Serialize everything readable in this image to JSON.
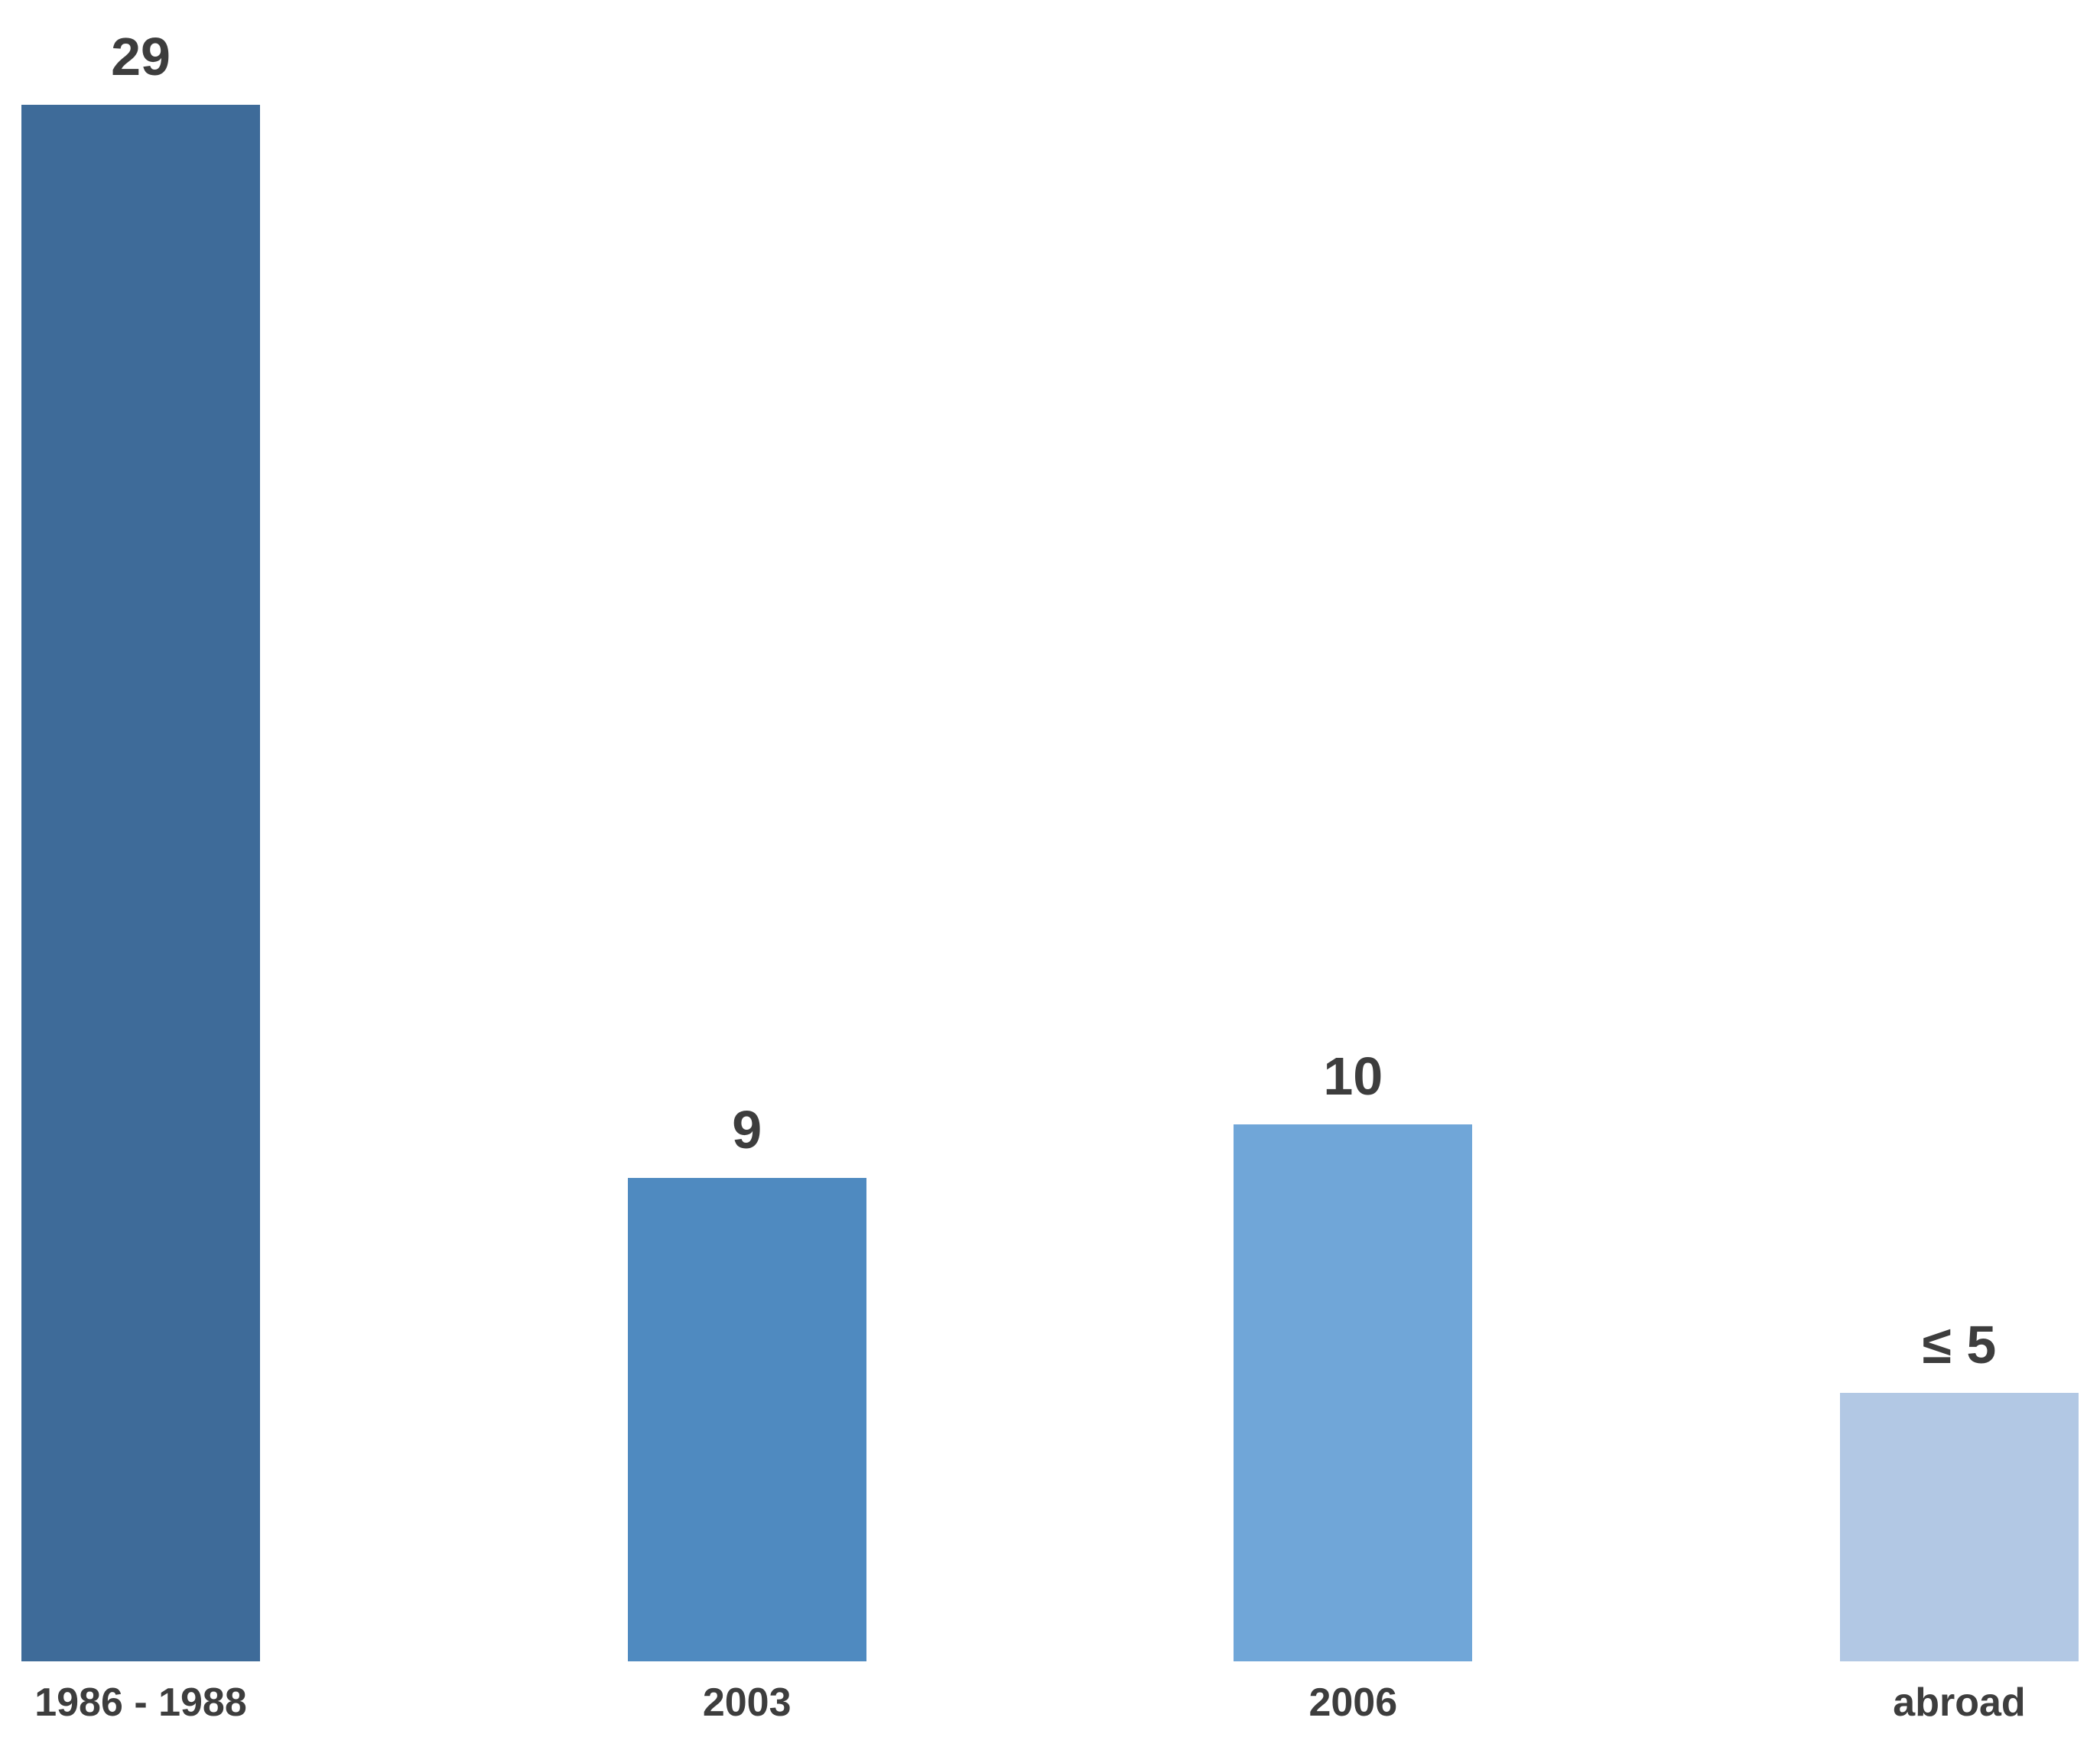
{
  "chart_data": {
    "type": "bar",
    "categories": [
      "1986 - 1988",
      "2003",
      "2006",
      "abroad"
    ],
    "values": [
      29,
      9,
      10,
      5
    ],
    "display_values": [
      "29",
      "9",
      "10",
      "≤ 5"
    ],
    "bar_colors": [
      "#3e6b99",
      "#4f8ac0",
      "#70a6d8",
      "#b2c8e4"
    ],
    "title": "",
    "xlabel": "",
    "ylabel": "",
    "ylim": [
      0,
      31
    ],
    "grid": false,
    "axes_visible": false,
    "legend": "none",
    "data_label_position": "outside-end",
    "background_color": "#ffffff",
    "label_text_color": "#3d3d3d"
  }
}
